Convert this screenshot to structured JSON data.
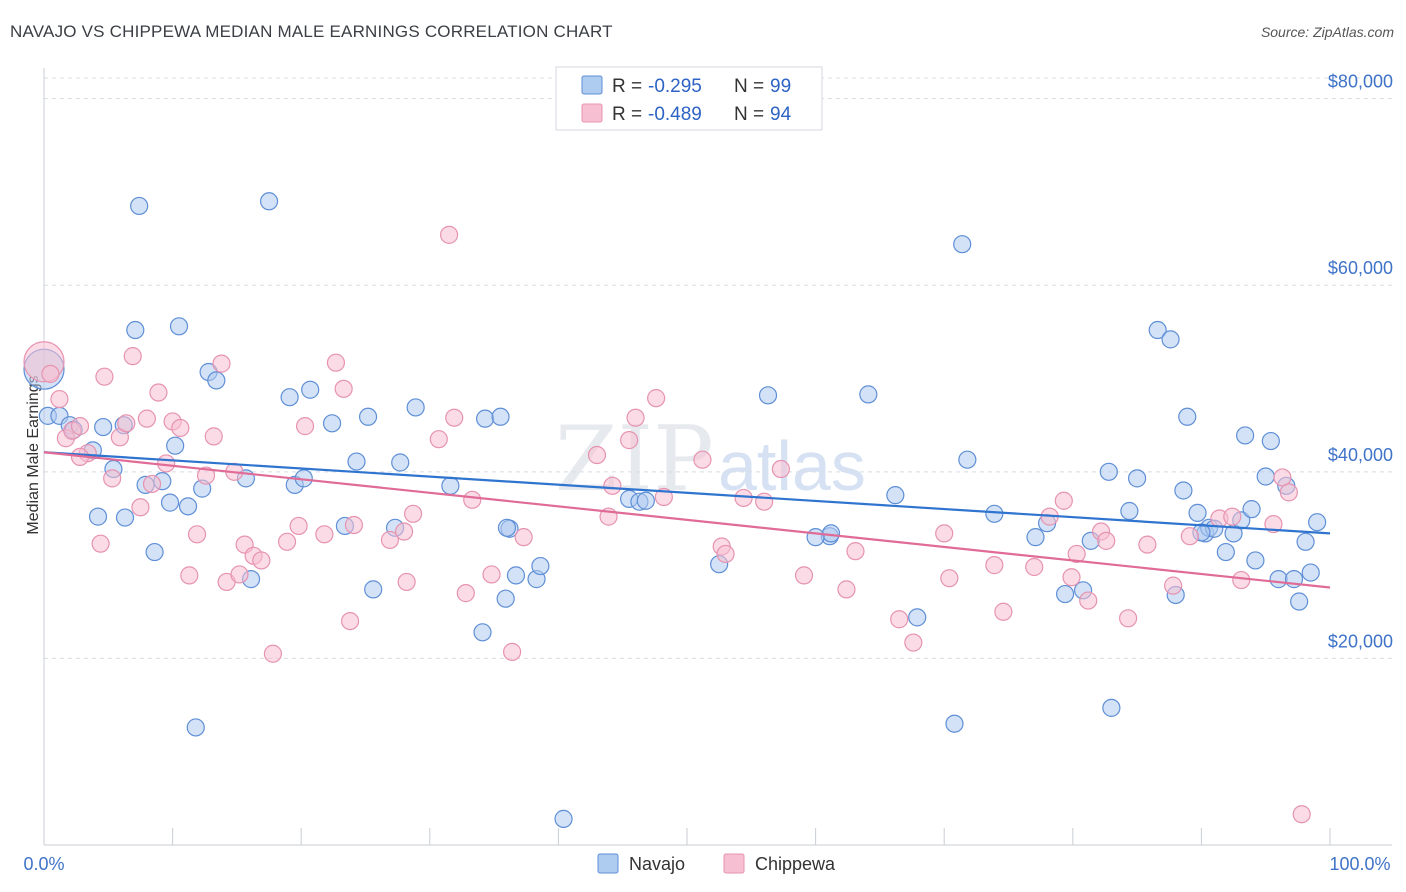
{
  "header": {
    "title": "NAVAJO VS CHIPPEWA MEDIAN MALE EARNINGS CORRELATION CHART",
    "source": "Source: ZipAtlas.com"
  },
  "watermark": {
    "part1": "ZIP",
    "part2": "atlas"
  },
  "colors": {
    "navajo_fill": "#aecbf0",
    "navajo_stroke": "#5f8fd6",
    "navajo_line": "#2f74cf",
    "chippewa_fill": "#f7c0d2",
    "chippewa_stroke": "#e693b0",
    "chippewa_line": "#e06b96",
    "tick_text": "#3f73c8",
    "grid": "#d8dde5"
  },
  "legend": {
    "rows": [
      {
        "r_label": "R = ",
        "r_value": "-0.295",
        "n_label": "N = ",
        "n_value": "99"
      },
      {
        "r_label": "R = ",
        "r_value": "-0.489",
        "n_label": "N = ",
        "n_value": "94"
      }
    ],
    "bottom": [
      "Navajo",
      "Chippewa"
    ]
  },
  "chart_data": {
    "type": "scatter",
    "title": "NAVAJO VS CHIPPEWA MEDIAN MALE EARNINGS CORRELATION CHART",
    "xlabel": "",
    "ylabel": "Median Male Earnings",
    "xlim": [
      0,
      100
    ],
    "ylim": [
      0,
      82000
    ],
    "x_tick_labels": [
      "0.0%",
      "100.0%"
    ],
    "y_ticks": [
      20000,
      40000,
      60000,
      80000
    ],
    "y_tick_labels": [
      "$20,000",
      "$40,000",
      "$60,000",
      "$80,000"
    ],
    "grid": true,
    "legend_position": "top-center",
    "series": [
      {
        "name": "Navajo",
        "r": -0.295,
        "n": 99,
        "trend": {
          "x": [
            0,
            100
          ],
          "y": [
            42100,
            33400
          ]
        },
        "points": [
          [
            0,
            51000
          ],
          [
            0.3,
            46000
          ],
          [
            1.2,
            46000
          ],
          [
            2,
            45000
          ],
          [
            2.3,
            44500
          ],
          [
            3.8,
            42300
          ],
          [
            4.2,
            35200
          ],
          [
            4.6,
            44800
          ],
          [
            5.4,
            40300
          ],
          [
            6.2,
            45000
          ],
          [
            6.3,
            35100
          ],
          [
            7.1,
            55200
          ],
          [
            7.4,
            68500
          ],
          [
            7.9,
            38600
          ],
          [
            8.6,
            31400
          ],
          [
            9.2,
            39000
          ],
          [
            9.8,
            36700
          ],
          [
            10.2,
            42800
          ],
          [
            10.5,
            55600
          ],
          [
            11.2,
            36300
          ],
          [
            11.8,
            12600
          ],
          [
            12.3,
            38200
          ],
          [
            12.8,
            50700
          ],
          [
            13.4,
            49800
          ],
          [
            15.7,
            39300
          ],
          [
            16.1,
            28500
          ],
          [
            17.5,
            69000
          ],
          [
            19.1,
            48000
          ],
          [
            19.5,
            38600
          ],
          [
            20.2,
            39300
          ],
          [
            20.7,
            48800
          ],
          [
            22.4,
            45200
          ],
          [
            23.4,
            34200
          ],
          [
            24.3,
            41100
          ],
          [
            25.2,
            45900
          ],
          [
            25.6,
            27400
          ],
          [
            27.3,
            34000
          ],
          [
            27.7,
            41000
          ],
          [
            28.9,
            46900
          ],
          [
            31.6,
            38500
          ],
          [
            34.1,
            22800
          ],
          [
            34.3,
            45700
          ],
          [
            35.5,
            45900
          ],
          [
            35.9,
            26400
          ],
          [
            36.2,
            33900
          ],
          [
            36.7,
            28900
          ],
          [
            38.3,
            28500
          ],
          [
            38.6,
            29900
          ],
          [
            40.4,
            2800
          ],
          [
            45.5,
            37100
          ],
          [
            46.3,
            36800
          ],
          [
            46.8,
            36900
          ],
          [
            52.5,
            30100
          ],
          [
            56.3,
            48200
          ],
          [
            61.1,
            33100
          ],
          [
            61.2,
            33400
          ],
          [
            64.1,
            48300
          ],
          [
            66.2,
            37500
          ],
          [
            67.9,
            24400
          ],
          [
            70.8,
            13000
          ],
          [
            71.4,
            64400
          ],
          [
            71.8,
            41300
          ],
          [
            73.9,
            35500
          ],
          [
            77.1,
            33000
          ],
          [
            78.0,
            34500
          ],
          [
            79.4,
            26900
          ],
          [
            80.8,
            27300
          ],
          [
            81.4,
            32600
          ],
          [
            82.8,
            40000
          ],
          [
            84.4,
            35800
          ],
          [
            85.0,
            39300
          ],
          [
            86.6,
            55200
          ],
          [
            87.6,
            54200
          ],
          [
            88.0,
            26800
          ],
          [
            88.6,
            38000
          ],
          [
            88.9,
            45900
          ],
          [
            89.7,
            35600
          ],
          [
            90.3,
            33400
          ],
          [
            90.6,
            34000
          ],
          [
            91.0,
            33900
          ],
          [
            91.9,
            31400
          ],
          [
            92.5,
            33400
          ],
          [
            93.1,
            34800
          ],
          [
            93.4,
            43900
          ],
          [
            93.9,
            36000
          ],
          [
            94.2,
            30500
          ],
          [
            95.0,
            39500
          ],
          [
            95.4,
            43300
          ],
          [
            96.0,
            28500
          ],
          [
            96.6,
            38500
          ],
          [
            97.2,
            28500
          ],
          [
            97.6,
            26100
          ],
          [
            98.1,
            32500
          ],
          [
            98.5,
            29200
          ],
          [
            99.0,
            34600
          ],
          [
            36.0,
            34000
          ],
          [
            90.0,
            33500
          ],
          [
            60.0,
            33000
          ],
          [
            83.0,
            14700
          ]
        ]
      },
      {
        "name": "Chippewa",
        "r": -0.489,
        "n": 94,
        "trend": {
          "x": [
            0,
            100
          ],
          "y": [
            42100,
            27600
          ]
        },
        "points": [
          [
            0,
            51800
          ],
          [
            0.5,
            50500
          ],
          [
            1.2,
            47800
          ],
          [
            1.7,
            43600
          ],
          [
            2.2,
            44400
          ],
          [
            2.8,
            44900
          ],
          [
            3.4,
            42000
          ],
          [
            4.4,
            32300
          ],
          [
            4.7,
            50200
          ],
          [
            5.3,
            39300
          ],
          [
            5.9,
            43700
          ],
          [
            6.4,
            45200
          ],
          [
            6.9,
            52400
          ],
          [
            7.5,
            36200
          ],
          [
            8.0,
            45700
          ],
          [
            8.4,
            38700
          ],
          [
            8.9,
            48500
          ],
          [
            9.5,
            40900
          ],
          [
            10.0,
            45400
          ],
          [
            10.6,
            44700
          ],
          [
            11.3,
            28900
          ],
          [
            11.9,
            33300
          ],
          [
            12.6,
            39600
          ],
          [
            13.2,
            43800
          ],
          [
            13.8,
            51600
          ],
          [
            14.2,
            28200
          ],
          [
            14.8,
            40000
          ],
          [
            15.2,
            29000
          ],
          [
            15.6,
            32200
          ],
          [
            16.3,
            31000
          ],
          [
            16.9,
            30500
          ],
          [
            17.8,
            20500
          ],
          [
            18.9,
            32500
          ],
          [
            19.8,
            34200
          ],
          [
            20.3,
            44900
          ],
          [
            21.8,
            33300
          ],
          [
            22.7,
            51700
          ],
          [
            23.3,
            48900
          ],
          [
            23.8,
            24000
          ],
          [
            24.1,
            34300
          ],
          [
            26.9,
            32700
          ],
          [
            28.0,
            33600
          ],
          [
            28.2,
            28200
          ],
          [
            28.7,
            35500
          ],
          [
            30.7,
            43500
          ],
          [
            31.5,
            65400
          ],
          [
            31.9,
            45800
          ],
          [
            32.8,
            27000
          ],
          [
            33.3,
            37000
          ],
          [
            34.8,
            29000
          ],
          [
            36.4,
            20700
          ],
          [
            37.3,
            33000
          ],
          [
            43.0,
            41800
          ],
          [
            43.9,
            35200
          ],
          [
            44.2,
            38500
          ],
          [
            45.5,
            43400
          ],
          [
            46.0,
            45800
          ],
          [
            47.6,
            47900
          ],
          [
            48.2,
            37300
          ],
          [
            51.2,
            41300
          ],
          [
            52.7,
            32000
          ],
          [
            53.0,
            31200
          ],
          [
            54.4,
            37200
          ],
          [
            56.0,
            36800
          ],
          [
            57.3,
            40300
          ],
          [
            59.1,
            28900
          ],
          [
            62.4,
            27400
          ],
          [
            63.1,
            31500
          ],
          [
            66.5,
            24200
          ],
          [
            67.6,
            21700
          ],
          [
            70.0,
            33400
          ],
          [
            70.4,
            28600
          ],
          [
            73.9,
            30000
          ],
          [
            74.6,
            25000
          ],
          [
            77.0,
            29800
          ],
          [
            78.2,
            35200
          ],
          [
            79.3,
            36900
          ],
          [
            79.9,
            28700
          ],
          [
            80.3,
            31200
          ],
          [
            81.2,
            26200
          ],
          [
            82.2,
            33600
          ],
          [
            82.6,
            32600
          ],
          [
            84.3,
            24300
          ],
          [
            85.8,
            32200
          ],
          [
            87.8,
            27800
          ],
          [
            89.1,
            33100
          ],
          [
            91.4,
            35000
          ],
          [
            92.4,
            35200
          ],
          [
            93.1,
            28400
          ],
          [
            95.6,
            34400
          ],
          [
            96.3,
            39400
          ],
          [
            96.8,
            37800
          ],
          [
            97.8,
            3300
          ],
          [
            2.8,
            41600
          ]
        ]
      }
    ]
  }
}
